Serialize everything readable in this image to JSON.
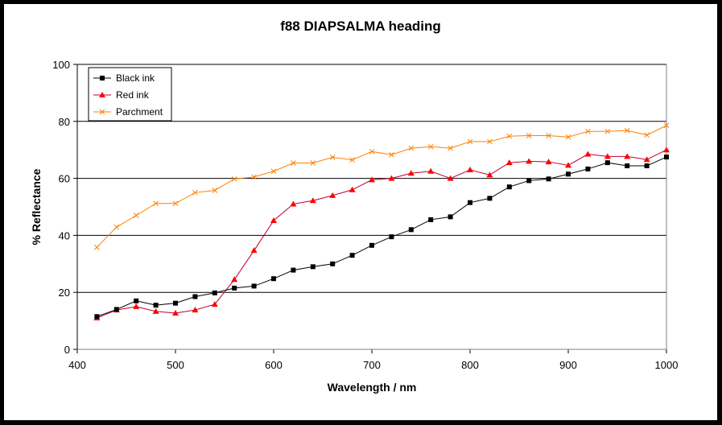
{
  "chart_data": {
    "type": "line",
    "title": "f88 DIAPSALMA heading",
    "xlabel": "Wavelength / nm",
    "ylabel": "% Reflectance",
    "xlim": [
      400,
      1000
    ],
    "ylim": [
      0,
      100
    ],
    "xticks": [
      400,
      500,
      600,
      700,
      800,
      900,
      1000
    ],
    "yticks": [
      0,
      20,
      40,
      60,
      80,
      100
    ],
    "grid": "horizontal",
    "legend": "top-left",
    "x": [
      420,
      440,
      460,
      480,
      500,
      520,
      540,
      560,
      580,
      600,
      620,
      640,
      660,
      680,
      700,
      720,
      740,
      760,
      780,
      800,
      820,
      840,
      860,
      880,
      900,
      920,
      940,
      960,
      980,
      1000
    ],
    "series": [
      {
        "name": "Black ink",
        "color": "#000000",
        "marker": "square",
        "values": [
          11.5,
          14,
          17,
          15.5,
          16.2,
          18.5,
          19.8,
          21.5,
          22.2,
          24.8,
          27.8,
          29,
          30,
          33,
          36.5,
          39.5,
          42,
          45.5,
          46.5,
          51.5,
          53,
          57,
          59.2,
          59.8,
          61.5,
          63.3,
          65.5,
          64.4,
          64.4,
          67.5
        ]
      },
      {
        "name": "Red ink",
        "color": "#ff0000",
        "marker": "triangle",
        "values": [
          11,
          13.8,
          15,
          13.3,
          12.7,
          13.8,
          15.8,
          24.5,
          34.7,
          45.2,
          51,
          52.2,
          54,
          56,
          59.5,
          60,
          61.8,
          62.5,
          60,
          63,
          61.2,
          65.5,
          66,
          65.8,
          64.6,
          68.5,
          67.7,
          67.7,
          66.6,
          70
        ]
      },
      {
        "name": "Parchment",
        "color": "#ff8000",
        "marker": "x",
        "values": [
          35.8,
          42.9,
          47,
          51.2,
          51.2,
          55,
          55.8,
          59.8,
          60.5,
          62.5,
          65.4,
          65.4,
          67.4,
          66.5,
          69.4,
          68.3,
          70.6,
          71.1,
          70.6,
          72.9,
          72.9,
          74.8,
          75,
          75,
          74.5,
          76.5,
          76.5,
          76.8,
          75.2,
          78.6
        ]
      }
    ]
  }
}
